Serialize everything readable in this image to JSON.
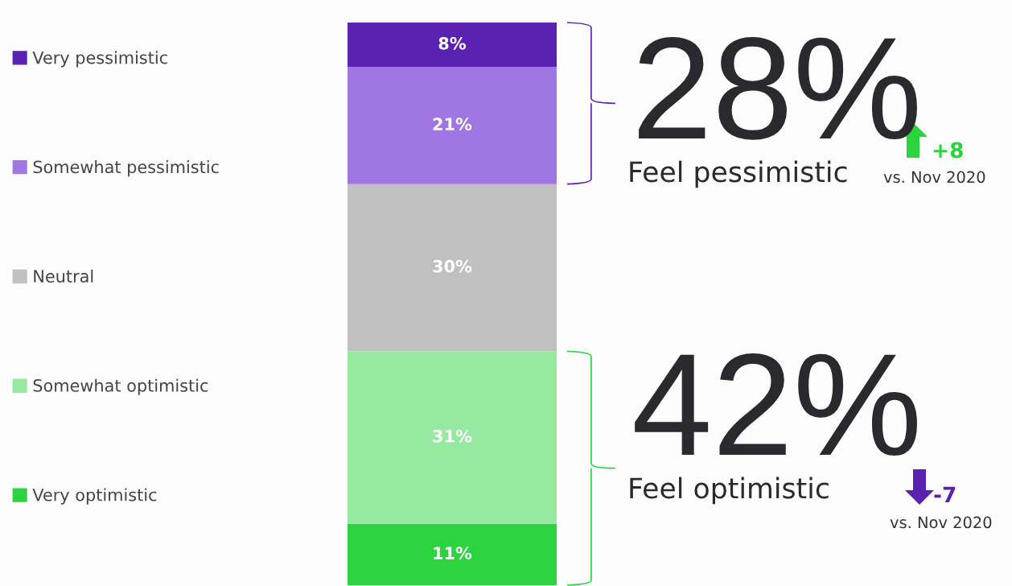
{
  "chart_data": {
    "type": "bar",
    "stacked": true,
    "legend": "left",
    "categories": [
      null
    ],
    "series": [
      {
        "name": "Very optimistic",
        "color": "#2bd33f",
        "values": [
          11
        ],
        "value_labels": [
          "11%"
        ]
      },
      {
        "name": "Somewhat optimistic",
        "color": "#96e99f",
        "values": [
          31
        ],
        "value_labels": [
          "31%"
        ]
      },
      {
        "name": "Neutral",
        "color": "#c0c0c0",
        "values": [
          30
        ],
        "value_labels": [
          "30%"
        ]
      },
      {
        "name": "Somewhat pessimistic",
        "color": "#a077e2",
        "values": [
          21
        ],
        "value_labels": [
          "21%"
        ]
      },
      {
        "name": "Very pessimistic",
        "color": "#5b22b2",
        "values": [
          8
        ],
        "value_labels": [
          "8%"
        ]
      }
    ],
    "annotations": [
      "28%",
      "Feel pessimistic",
      "+8",
      "vs. Nov 2020",
      "42%",
      "Feel optimistic",
      "-7",
      "vs. Nov 2020"
    ]
  }
}
